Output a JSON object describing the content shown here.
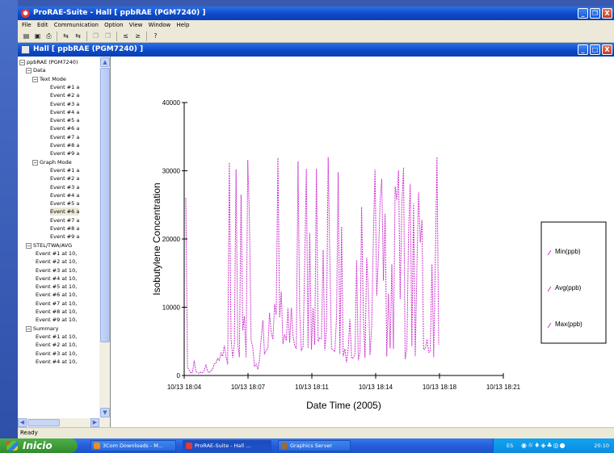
{
  "app": {
    "title": "ProRAE-Suite - Hall    [ ppbRAE (PGM7240) ]",
    "menu": [
      "File",
      "Edit",
      "Communication",
      "Option",
      "View",
      "Window",
      "Help"
    ],
    "window_buttons": {
      "minimize": "_",
      "restore": "❐",
      "close": "X"
    }
  },
  "toolbar": {
    "open_icon": "folder-open-icon",
    "save_icon": "save-icon",
    "print_icon": "print-icon",
    "icons": [
      "folder-open-icon",
      "save-icon",
      "print-icon",
      "transfer-icon",
      "transfer-icon",
      "copy-icon",
      "copy-icon",
      "back-icon",
      "forward-icon",
      "help-icon"
    ]
  },
  "document": {
    "title": "Hall    [ ppbRAE (PGM7240) ]"
  },
  "tree": {
    "root": "ppbRAE (PGM7240)",
    "data_label": "Data",
    "text_mode_label": "Text Mode",
    "text_mode_events": [
      "Event #1 a",
      "Event #2 a",
      "Event #3 a",
      "Event #4 a",
      "Event #5 a",
      "Event #6 a",
      "Event #7 a",
      "Event #8 a",
      "Event #9 a"
    ],
    "graph_mode_label": "Graph Mode",
    "graph_mode_events": [
      "Event #1 a",
      "Event #2 a",
      "Event #3 a",
      "Event #4 a",
      "Event #5 a",
      "Event #6 a",
      "Event #7 a",
      "Event #8 a",
      "Event #9 a"
    ],
    "stel_label": "STEL/TWA/AVG",
    "stel_events": [
      "Event #1 at 10,",
      "Event #2 at 10,",
      "Event #3 at 10,",
      "Event #4 at 10,",
      "Event #5 at 10,",
      "Event #6 at 10,",
      "Event #7 at 10,",
      "Event #8 at 10,",
      "Event #9 at 10,"
    ],
    "summary_label": "Summary",
    "summary_events": [
      "Event #1 at 10,",
      "Event #2 at 10,",
      "Event #3 at 10,",
      "Event #4 at 10,"
    ]
  },
  "chart_data": {
    "type": "line",
    "xlabel": "Date Time (2005)",
    "ylabel": "Isobutylene Concentration",
    "ylim": [
      0,
      40000
    ],
    "yticks": [
      0,
      10000,
      20000,
      30000,
      40000
    ],
    "xticks": [
      "10/13 18:04",
      "10/13 18:07",
      "10/13 18:11",
      "10/13 18:14",
      "10/13 18:18",
      "10/13 18:21"
    ],
    "legend_position": "right",
    "color": "#cc33cc",
    "series": [
      {
        "name": "Min(ppb)"
      },
      {
        "name": "Avg(ppb)"
      },
      {
        "name": "Max(ppb)"
      }
    ],
    "y": [
      26000,
      1200,
      800,
      300,
      500,
      2200,
      600,
      400,
      300,
      500,
      400,
      700,
      1600,
      600,
      400,
      700,
      900,
      1700,
      1800,
      2500,
      2200,
      3300,
      2800,
      4400,
      2800,
      1600,
      31200,
      5400,
      2600,
      4600,
      30200,
      4500,
      2700,
      26500,
      6600,
      8700,
      2600,
      31600,
      22800,
      5200,
      4100,
      1300,
      1700,
      900,
      2300,
      5500,
      8100,
      3100,
      3700,
      4000,
      9200,
      6300,
      5300,
      10500,
      8900,
      31900,
      8500,
      12300,
      4600,
      6000,
      5100,
      9900,
      4800,
      9900,
      5800,
      4400,
      3900,
      31400,
      9000,
      3700,
      4200,
      16400,
      30300,
      4000,
      20900,
      3800,
      9900,
      4500,
      30300,
      5000,
      5500,
      5400,
      18400,
      3700,
      6600,
      32000,
      16900,
      4000,
      3700,
      3500,
      8700,
      29800,
      3100,
      21800,
      2800,
      3900,
      1900,
      4100,
      8300,
      2500,
      2600,
      3100,
      16900,
      2200,
      3500,
      24700,
      8900,
      2600,
      17300,
      12400,
      3000,
      7200,
      20500,
      30200,
      11700,
      17200,
      25500,
      28800,
      13900,
      23700,
      2800,
      12000,
      4000,
      16300,
      3900,
      27700,
      25700,
      30100,
      11200,
      25100,
      30500,
      2400,
      3900,
      20900,
      28100,
      4300,
      25200,
      2800,
      16100,
      26900,
      19500,
      22800,
      3800,
      3900,
      5300,
      3400,
      3500,
      16300,
      2700,
      17300,
      32000,
      4500
    ]
  },
  "status": {
    "text": "Ready"
  },
  "taskbar": {
    "start_label": "Inicio",
    "tasks": [
      "3Com Downloads - M...",
      "ProRAE-Suite - Hall ...",
      "Graphics Server"
    ],
    "tray_lang": "ES",
    "clock": "20:10"
  }
}
